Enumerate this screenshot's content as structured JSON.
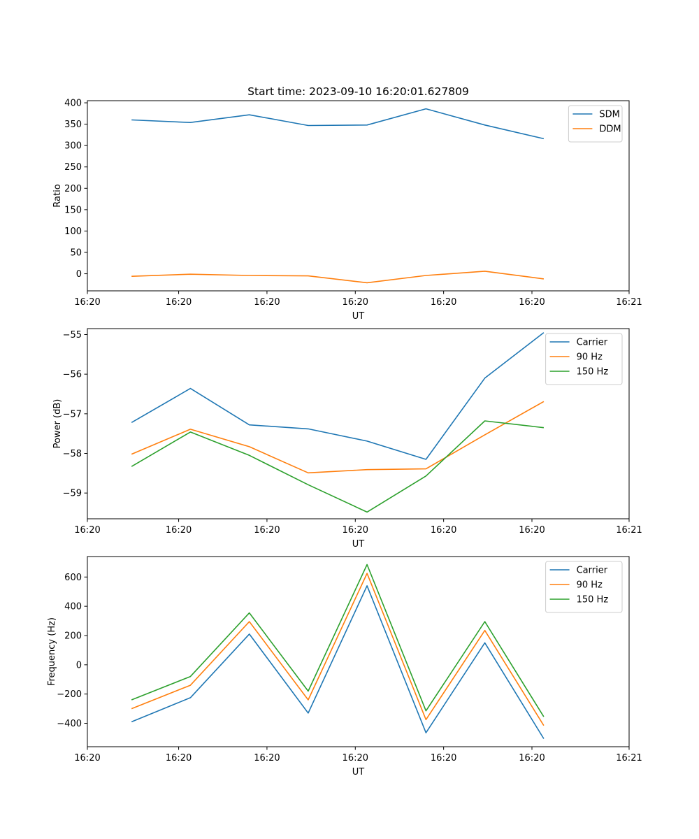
{
  "figure_title": "Start time: 2023-09-10 16:20:01.627809",
  "colors": {
    "blue": "#1f77b4",
    "orange": "#ff7f0e",
    "green": "#2ca02c"
  },
  "chart_data": [
    {
      "type": "line",
      "title": "Start time: 2023-09-10 16:20:01.627809",
      "xlabel": "UT",
      "ylabel": "Ratio",
      "x": [
        0,
        1,
        2,
        3,
        4,
        5,
        6,
        7
      ],
      "xlim": [
        -0.75,
        8.45
      ],
      "xticks": [
        -0.75,
        0.8,
        2.3,
        3.8,
        5.3,
        6.8,
        8.45
      ],
      "xtick_labels": [
        "16:20",
        "16:20",
        "16:20",
        "16:20",
        "16:20",
        "16:20",
        "16:21"
      ],
      "ylim": [
        -40,
        405
      ],
      "yticks": [
        0,
        50,
        100,
        150,
        200,
        250,
        300,
        350,
        400
      ],
      "ytick_labels": [
        "0",
        "50",
        "100",
        "150",
        "200",
        "250",
        "300",
        "350",
        "400"
      ],
      "legend": "top-right",
      "series": [
        {
          "name": "SDM",
          "color": "blue",
          "values": [
            360,
            354,
            372,
            347,
            348,
            386,
            348,
            316
          ]
        },
        {
          "name": "DDM",
          "color": "orange",
          "values": [
            -6,
            -1,
            -4,
            -5,
            -21,
            -4,
            6,
            -12
          ]
        }
      ]
    },
    {
      "type": "line",
      "title": "",
      "xlabel": "UT",
      "ylabel": "Power (dB)",
      "x": [
        0,
        1,
        2,
        3,
        4,
        5,
        6,
        7
      ],
      "xlim": [
        -0.75,
        8.45
      ],
      "xticks": [
        -0.75,
        0.8,
        2.3,
        3.8,
        5.3,
        6.8,
        8.45
      ],
      "xtick_labels": [
        "16:20",
        "16:20",
        "16:20",
        "16:20",
        "16:20",
        "16:20",
        "16:21"
      ],
      "ylim": [
        -59.65,
        -54.85
      ],
      "yticks": [
        -59,
        -58,
        -57,
        -56,
        -55
      ],
      "ytick_labels": [
        "−59",
        "−58",
        "−57",
        "−56",
        "−55"
      ],
      "legend": "top-right",
      "series": [
        {
          "name": "Carrier",
          "color": "blue",
          "values": [
            -57.22,
            -56.36,
            -57.28,
            -57.38,
            -57.69,
            -58.15,
            -56.1,
            -54.95
          ]
        },
        {
          "name": "90 Hz",
          "color": "orange",
          "values": [
            -58.02,
            -57.39,
            -57.83,
            -58.49,
            -58.41,
            -58.39,
            -57.53,
            -56.69
          ]
        },
        {
          "name": "150 Hz",
          "color": "green",
          "values": [
            -58.33,
            -57.46,
            -58.05,
            -58.79,
            -59.48,
            -58.57,
            -57.18,
            -57.35
          ]
        }
      ]
    },
    {
      "type": "line",
      "title": "",
      "xlabel": "UT",
      "ylabel": "Frequency (Hz)",
      "x": [
        0,
        1,
        2,
        3,
        4,
        5,
        6,
        7
      ],
      "xlim": [
        -0.75,
        8.45
      ],
      "xticks": [
        -0.75,
        0.8,
        2.3,
        3.8,
        5.3,
        6.8,
        8.45
      ],
      "xtick_labels": [
        "16:20",
        "16:20",
        "16:20",
        "16:20",
        "16:20",
        "16:20",
        "16:21"
      ],
      "ylim": [
        -560,
        740
      ],
      "yticks": [
        -400,
        -200,
        0,
        200,
        400,
        600
      ],
      "ytick_labels": [
        "−400",
        "−200",
        "0",
        "200",
        "400",
        "600"
      ],
      "legend": "top-right",
      "series": [
        {
          "name": "Carrier",
          "color": "blue",
          "values": [
            -390,
            -225,
            210,
            -330,
            540,
            -465,
            150,
            -505
          ]
        },
        {
          "name": "90 Hz",
          "color": "orange",
          "values": [
            -300,
            -140,
            295,
            -240,
            625,
            -375,
            235,
            -415
          ]
        },
        {
          "name": "150 Hz",
          "color": "green",
          "values": [
            -240,
            -80,
            355,
            -180,
            685,
            -315,
            295,
            -355
          ]
        }
      ]
    }
  ]
}
